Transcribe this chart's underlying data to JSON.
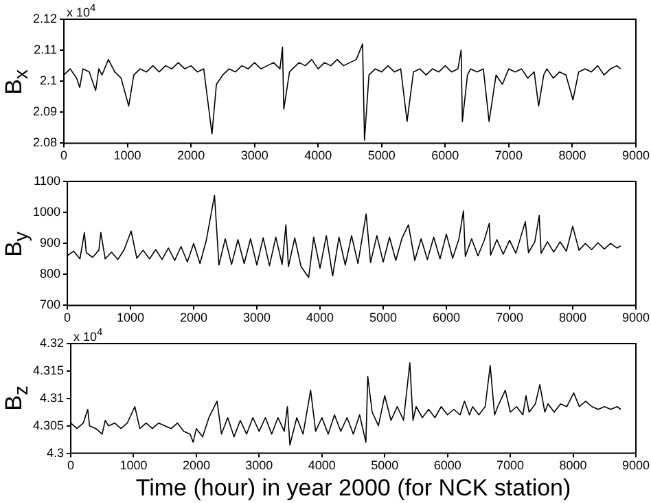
{
  "chart_data": [
    {
      "type": "line",
      "ylabel": "B$_{x}$",
      "annotations": [
        "x 10$^{4}$"
      ],
      "color": "#000000",
      "marker": "none",
      "xlim": [
        0,
        9000
      ],
      "xticks": [
        0,
        1000,
        2000,
        3000,
        4000,
        5000,
        6000,
        7000,
        8000,
        9000
      ],
      "ylim": [
        2.08,
        2.12
      ],
      "yticks": [
        2.08,
        2.09,
        2.1,
        2.11,
        2.12
      ],
      "x": [
        0,
        100,
        200,
        250,
        300,
        400,
        500,
        550,
        600,
        700,
        800,
        900,
        1020,
        1100,
        1200,
        1300,
        1400,
        1500,
        1600,
        1700,
        1800,
        1900,
        2000,
        2100,
        2200,
        2330,
        2400,
        2500,
        2600,
        2700,
        2800,
        2900,
        3000,
        3100,
        3200,
        3300,
        3400,
        3440,
        3460,
        3550,
        3600,
        3700,
        3800,
        3900,
        4000,
        4100,
        4200,
        4300,
        4400,
        4500,
        4600,
        4700,
        4730,
        4800,
        4900,
        5000,
        5100,
        5200,
        5300,
        5400,
        5500,
        5600,
        5700,
        5800,
        5900,
        6000,
        6100,
        6200,
        6250,
        6270,
        6350,
        6400,
        6500,
        6600,
        6690,
        6800,
        6900,
        7000,
        7100,
        7200,
        7300,
        7400,
        7470,
        7550,
        7600,
        7700,
        7800,
        7900,
        8010,
        8100,
        8200,
        8300,
        8400,
        8500,
        8600,
        8700,
        8760
      ],
      "values": [
        2.102,
        2.104,
        2.101,
        2.098,
        2.104,
        2.103,
        2.097,
        2.104,
        2.102,
        2.107,
        2.103,
        2.101,
        2.092,
        2.102,
        2.104,
        2.103,
        2.105,
        2.103,
        2.105,
        2.104,
        2.106,
        2.104,
        2.105,
        2.103,
        2.104,
        2.083,
        2.099,
        2.102,
        2.104,
        2.103,
        2.105,
        2.104,
        2.106,
        2.104,
        2.105,
        2.106,
        2.104,
        2.111,
        2.091,
        2.103,
        2.104,
        2.106,
        2.105,
        2.107,
        2.104,
        2.106,
        2.105,
        2.107,
        2.105,
        2.106,
        2.107,
        2.112,
        2.081,
        2.102,
        2.104,
        2.103,
        2.105,
        2.103,
        2.104,
        2.087,
        2.103,
        2.104,
        2.102,
        2.104,
        2.103,
        2.105,
        2.103,
        2.104,
        2.11,
        2.087,
        2.102,
        2.104,
        2.103,
        2.104,
        2.087,
        2.102,
        2.099,
        2.104,
        2.103,
        2.104,
        2.101,
        2.103,
        2.092,
        2.102,
        2.104,
        2.101,
        2.103,
        2.102,
        2.094,
        2.103,
        2.104,
        2.103,
        2.105,
        2.102,
        2.104,
        2.105,
        2.104
      ]
    },
    {
      "type": "line",
      "ylabel": "B$_{y}$",
      "color": "#000000",
      "marker": "none",
      "xlim": [
        0,
        9000
      ],
      "xticks": [
        0,
        1000,
        2000,
        3000,
        4000,
        5000,
        6000,
        7000,
        8000,
        9000
      ],
      "ylim": [
        700,
        1100
      ],
      "yticks": [
        700,
        800,
        900,
        1000,
        1100
      ],
      "x": [
        0,
        100,
        200,
        270,
        300,
        400,
        500,
        530,
        600,
        700,
        800,
        900,
        1010,
        1100,
        1200,
        1300,
        1400,
        1500,
        1600,
        1700,
        1800,
        1900,
        2000,
        2100,
        2200,
        2330,
        2400,
        2500,
        2600,
        2700,
        2800,
        2900,
        3000,
        3100,
        3200,
        3300,
        3400,
        3460,
        3500,
        3600,
        3700,
        3820,
        3900,
        4000,
        4100,
        4200,
        4300,
        4400,
        4500,
        4600,
        4730,
        4800,
        4900,
        5000,
        5100,
        5200,
        5300,
        5400,
        5500,
        5600,
        5700,
        5800,
        5900,
        6000,
        6100,
        6200,
        6270,
        6300,
        6400,
        6500,
        6600,
        6680,
        6700,
        6800,
        6900,
        7000,
        7100,
        7250,
        7300,
        7400,
        7470,
        7500,
        7600,
        7700,
        7800,
        7900,
        8000,
        8100,
        8200,
        8300,
        8400,
        8500,
        8600,
        8700,
        8760
      ],
      "values": [
        860,
        875,
        850,
        935,
        870,
        855,
        878,
        935,
        850,
        872,
        848,
        880,
        940,
        852,
        878,
        850,
        880,
        848,
        885,
        845,
        890,
        840,
        900,
        835,
        910,
        1055,
        830,
        915,
        832,
        912,
        835,
        915,
        830,
        918,
        828,
        920,
        832,
        960,
        825,
        918,
        825,
        790,
        920,
        820,
        925,
        795,
        920,
        830,
        925,
        835,
        995,
        838,
        925,
        840,
        920,
        845,
        918,
        960,
        845,
        915,
        848,
        920,
        850,
        930,
        852,
        915,
        1005,
        858,
        915,
        860,
        910,
        965,
        862,
        912,
        865,
        910,
        868,
        970,
        870,
        905,
        990,
        868,
        905,
        872,
        905,
        875,
        955,
        878,
        900,
        880,
        902,
        882,
        900,
        885,
        892
      ]
    },
    {
      "type": "line",
      "ylabel": "B$_{z}$",
      "xlabel": "Time (hour) in year 2000 (for NCK station)",
      "annotations": [
        "x 10$^{4}$"
      ],
      "color": "#000000",
      "marker": "none",
      "xlim": [
        0,
        9000
      ],
      "xticks": [
        0,
        1000,
        2000,
        3000,
        4000,
        5000,
        6000,
        7000,
        8000,
        9000
      ],
      "ylim": [
        4.3,
        4.32
      ],
      "yticks": [
        4.3,
        4.305,
        4.31,
        4.315,
        4.32
      ],
      "x": [
        0,
        100,
        200,
        270,
        300,
        400,
        500,
        550,
        600,
        700,
        800,
        900,
        1020,
        1100,
        1200,
        1300,
        1400,
        1500,
        1600,
        1700,
        1800,
        1900,
        1950,
        2000,
        2100,
        2200,
        2330,
        2400,
        2500,
        2600,
        2700,
        2800,
        2900,
        3000,
        3100,
        3200,
        3300,
        3400,
        3450,
        3490,
        3600,
        3700,
        3820,
        3900,
        4000,
        4100,
        4200,
        4300,
        4400,
        4500,
        4600,
        4700,
        4730,
        4800,
        4900,
        5000,
        5100,
        5200,
        5300,
        5400,
        5450,
        5500,
        5600,
        5700,
        5800,
        5900,
        6000,
        6100,
        6200,
        6270,
        6350,
        6400,
        6500,
        6600,
        6680,
        6750,
        6800,
        6920,
        7000,
        7100,
        7200,
        7250,
        7300,
        7400,
        7470,
        7550,
        7600,
        7700,
        7800,
        7900,
        8010,
        8100,
        8200,
        8300,
        8400,
        8500,
        8600,
        8700,
        8760
      ],
      "values": [
        4.3055,
        4.3045,
        4.3055,
        4.308,
        4.305,
        4.3045,
        4.3035,
        4.306,
        4.305,
        4.3055,
        4.3045,
        4.3055,
        4.3085,
        4.3045,
        4.3055,
        4.3045,
        4.3055,
        4.305,
        4.3045,
        4.3055,
        4.304,
        4.3035,
        4.302,
        4.3045,
        4.303,
        4.3065,
        4.3095,
        4.3035,
        4.3065,
        4.303,
        4.306,
        4.3035,
        4.3065,
        4.304,
        4.3065,
        4.3035,
        4.3065,
        4.304,
        4.3085,
        4.3015,
        4.3065,
        4.3035,
        4.3115,
        4.304,
        4.3065,
        4.3035,
        4.307,
        4.304,
        4.3065,
        4.3035,
        4.307,
        4.302,
        4.314,
        4.3075,
        4.305,
        4.3105,
        4.306,
        4.3085,
        4.306,
        4.3165,
        4.306,
        4.3085,
        4.3065,
        4.308,
        4.3065,
        4.3085,
        4.307,
        4.308,
        4.307,
        4.3095,
        4.307,
        4.3085,
        4.307,
        4.3085,
        4.316,
        4.307,
        4.3085,
        4.3115,
        4.3075,
        4.3085,
        4.307,
        4.3105,
        4.3075,
        4.309,
        4.3125,
        4.3075,
        4.309,
        4.3075,
        4.309,
        4.3085,
        4.311,
        4.3085,
        4.3095,
        4.3085,
        4.308,
        4.3085,
        4.308,
        4.3085,
        4.308
      ]
    }
  ]
}
